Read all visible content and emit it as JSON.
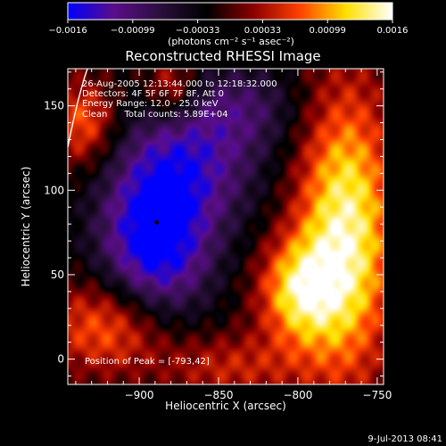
{
  "colorbar": {
    "ticks": [
      "-0.0016",
      "-0.00099",
      "-0.00033",
      "0.00033",
      "0.00099",
      "0.0016"
    ],
    "unit_label": "(photons cm⁻² s⁻¹ asec⁻²)",
    "colormap": [
      "#0000ff",
      "#5a0d8a",
      "#2a0f3c",
      "#000000",
      "#8a0000",
      "#ff4000",
      "#ffe000",
      "#ffffff"
    ]
  },
  "chart_data": {
    "type": "heatmap",
    "title": "Reconstructed RHESSI Image",
    "xlabel": "Heliocentric X (arcsec)",
    "ylabel": "Heliocentric Y (arcsec)",
    "xlim": [
      -945,
      -746
    ],
    "ylim": [
      -15,
      172
    ],
    "xticks": [
      -900,
      -850,
      -800,
      -750
    ],
    "yticks": [
      0,
      50,
      100,
      150
    ],
    "xtick_labels": [
      "−900",
      "−850",
      "−800",
      "−750"
    ],
    "ytick_labels": [
      "0",
      "50",
      "100",
      "150"
    ],
    "value_range": [
      -0.0016,
      0.0016
    ],
    "info_lines": [
      "26-Aug-2005 12:13:44.000 to 12:18:32.000",
      "Detectors: 4F 5F 6F 7F 8F, Att 0",
      "Energy Range: 12.0 - 25.0 keV",
      "Clean      Total counts: 5.89E+04"
    ],
    "peak_text": "Position of Peak = [-793,42]",
    "peak": [
      -793,
      42
    ],
    "marker": [
      -889,
      81
    ],
    "sources": [
      {
        "x": -770,
        "y": 75,
        "sx": 22,
        "sy": 60,
        "amp": 0.0016
      },
      {
        "x": -800,
        "y": 40,
        "sx": 18,
        "sy": 22,
        "amp": 0.0012
      },
      {
        "x": -915,
        "y": 20,
        "sx": 30,
        "sy": 20,
        "amp": 0.0011
      },
      {
        "x": -935,
        "y": 140,
        "sx": 15,
        "sy": 18,
        "amp": 0.0009
      },
      {
        "x": -880,
        "y": 160,
        "sx": 12,
        "sy": 14,
        "amp": 0.0008
      },
      {
        "x": -845,
        "y": -5,
        "sx": 35,
        "sy": 14,
        "amp": 0.0006
      },
      {
        "x": -890,
        "y": 70,
        "sx": 25,
        "sy": 40,
        "amp": -0.0016
      },
      {
        "x": -860,
        "y": 120,
        "sx": 30,
        "sy": 30,
        "amp": -0.0008
      },
      {
        "x": -830,
        "y": 150,
        "sx": 25,
        "sy": 18,
        "amp": -0.0005
      }
    ]
  },
  "footer": {
    "date": "9-Jul-2013 08:41"
  }
}
